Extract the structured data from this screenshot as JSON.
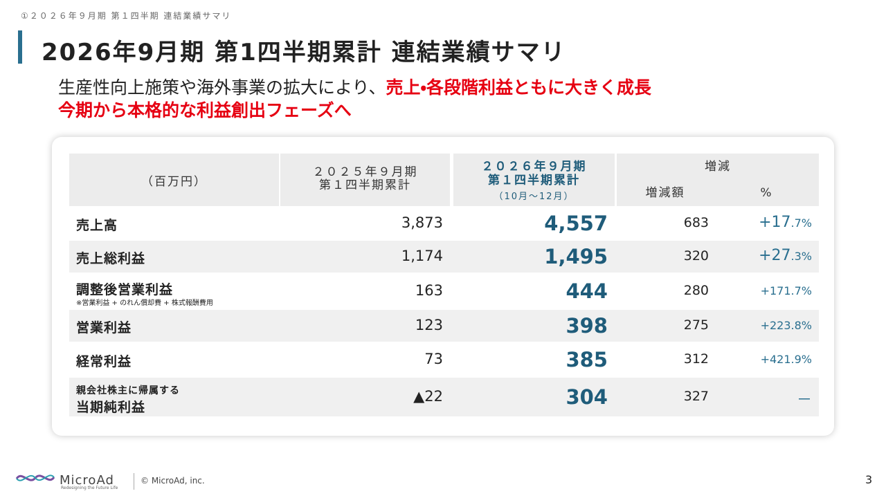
{
  "header": {
    "breadcrumb": "①２０２６年９月期 第１四半期 連結業績サマリ",
    "title": "2026年9月期 第1四半期累計 連結業績サマリ"
  },
  "lead": {
    "line1": "生産性向上施策や海外事業の拡大により、",
    "line1_emphasis": "売上・各段階利益ともに大きく成長",
    "line2": "今期から本格的な利益創出フェーズへ"
  },
  "table": {
    "header": {
      "unit": "（百万円）",
      "prev": [
        "２０２５年９月期",
        "第１四半期累計"
      ],
      "current": [
        "２０２６年９月期",
        "第１四半期累計",
        "（10月～12月）"
      ],
      "change": "増減",
      "change_amount": "増減額",
      "change_pct": "%"
    },
    "rows": [
      {
        "label": "売上高",
        "prev": "3,873",
        "current": "4,557",
        "diff": "683",
        "pct": "+17.7%"
      },
      {
        "label": "売上総利益",
        "prev": "1,174",
        "current": "1,495",
        "diff": "320",
        "pct": "+27.3%"
      },
      {
        "label": "調整後営業利益",
        "note": "※営業利益 + のれん償却費 + 株式報酬費用",
        "prev": "163",
        "current": "444",
        "diff": "280",
        "pct": "+171.7%"
      },
      {
        "label": "営業利益",
        "prev": "123",
        "current": "398",
        "diff": "275",
        "pct": "+223.8%"
      },
      {
        "label": "経常利益",
        "prev": "73",
        "current": "385",
        "diff": "312",
        "pct": "+421.9%"
      },
      {
        "label_pre": "親会社株主に帰属する",
        "label": "当期純利益",
        "prev": "▲22",
        "current": "304",
        "diff": "327",
        "pct": "－"
      }
    ]
  },
  "footer": {
    "logo": "MicroAd",
    "tagline": "Redesigning the Future Life",
    "copyright": "© MicroAd, inc.",
    "page": "3"
  }
}
